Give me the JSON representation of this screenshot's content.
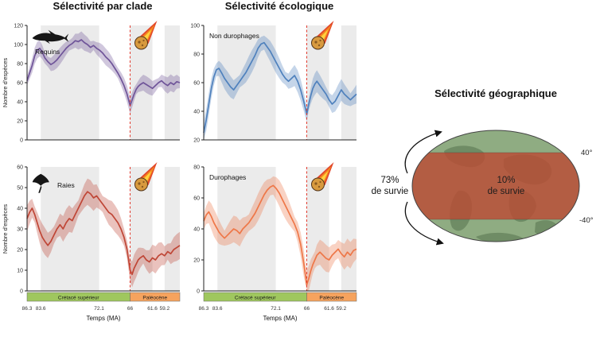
{
  "titles": {
    "clade": "Sélectivité par clade",
    "ecology": "Sélectivité écologique",
    "geography": "Sélectivité géographique"
  },
  "geography": {
    "left_value": "73%",
    "left_label": "de survie",
    "center_value": "10%",
    "center_label": "de survie",
    "lat_north": "40°",
    "lat_south": "-40°",
    "ocean_color": "#8fac82",
    "band_color": "#bb4a33"
  },
  "chart_data": {
    "type": "line",
    "x_label": "Temps (MA)",
    "y_label": "Nombre d'espèces",
    "xlim": [
      86.3,
      56.2
    ],
    "xticks": [
      86.3,
      83.6,
      72.1,
      66,
      61.6,
      59.2
    ],
    "extinction_event_ma": 66,
    "shaded_stages": [
      [
        83.6,
        72.1
      ],
      [
        66,
        61.6
      ],
      [
        59.2,
        56.2
      ]
    ],
    "era_bar": [
      {
        "label": "Crétacé supérieur",
        "from": 86.3,
        "to": 66,
        "color": "#9fc75e"
      },
      {
        "label": "Paléocène",
        "from": 66,
        "to": 56.2,
        "color": "#f6a35e"
      }
    ],
    "x": [
      86.3,
      85.8,
      85.3,
      84.8,
      84.3,
      83.8,
      83.3,
      82.8,
      82.2,
      81.6,
      81.0,
      80.4,
      79.8,
      79.2,
      78.6,
      78.0,
      77.4,
      76.8,
      76.2,
      75.6,
      75.0,
      74.4,
      73.8,
      73.2,
      72.6,
      72.0,
      71.4,
      70.8,
      70.2,
      69.6,
      69.0,
      68.4,
      67.8,
      67.2,
      66.6,
      66.0,
      65.6,
      65.2,
      64.8,
      64.4,
      64.0,
      63.4,
      62.8,
      62.2,
      61.6,
      61.0,
      60.4,
      59.8,
      59.2,
      58.6,
      58.0,
      57.4,
      56.8,
      56.2
    ],
    "charts": [
      {
        "key": "sharks",
        "panel": "clade",
        "label": "Requins",
        "icon": "shark-icon",
        "color": "#6f5499",
        "ylabel": "Nombre d'espèces",
        "ylim": [
          0,
          120
        ],
        "yticks": [
          0,
          20,
          40,
          60,
          80,
          100,
          120
        ],
        "band": 8,
        "values": [
          62,
          70,
          78,
          88,
          94,
          96,
          92,
          86,
          82,
          79,
          81,
          84,
          88,
          92,
          96,
          99,
          101,
          104,
          103,
          105,
          102,
          100,
          97,
          99,
          96,
          94,
          91,
          87,
          84,
          80,
          75,
          70,
          64,
          57,
          48,
          36,
          42,
          48,
          53,
          56,
          58,
          60,
          58,
          56,
          54,
          57,
          60,
          62,
          59,
          57,
          60,
          58,
          61,
          60
        ]
      },
      {
        "key": "non_durophages",
        "panel": "ecology",
        "label": "Non durophages",
        "icon": null,
        "color": "#4f81bd",
        "ylabel": "",
        "ylim": [
          20,
          100
        ],
        "yticks": [
          20,
          40,
          60,
          80,
          100
        ],
        "band": 7,
        "values": [
          25,
          34,
          45,
          56,
          64,
          69,
          70,
          67,
          63,
          60,
          57,
          55,
          58,
          61,
          64,
          67,
          71,
          75,
          79,
          84,
          87,
          88,
          85,
          82,
          78,
          74,
          70,
          66,
          63,
          61,
          63,
          65,
          61,
          55,
          47,
          38,
          45,
          51,
          56,
          59,
          61,
          58,
          55,
          52,
          48,
          45,
          47,
          51,
          55,
          52,
          50,
          48,
          50,
          52
        ]
      },
      {
        "key": "rays",
        "panel": "clade",
        "label": "Raies",
        "icon": "ray-icon",
        "color": "#bf4636",
        "ylabel": "Nombre d'espèces",
        "ylim": [
          0,
          60
        ],
        "yticks": [
          0,
          10,
          20,
          30,
          40,
          50,
          60
        ],
        "band": 6,
        "values": [
          35,
          38,
          40,
          37,
          33,
          29,
          26,
          24,
          22,
          24,
          27,
          30,
          32,
          30,
          33,
          35,
          34,
          37,
          40,
          43,
          46,
          48,
          47,
          45,
          46,
          44,
          42,
          40,
          38,
          37,
          35,
          33,
          30,
          26,
          20,
          10,
          8,
          11,
          13,
          15,
          16,
          17,
          15,
          14,
          16,
          15,
          17,
          18,
          17,
          19,
          18,
          20,
          21,
          22
        ]
      },
      {
        "key": "durophages",
        "panel": "ecology",
        "label": "Durophages",
        "icon": null,
        "color": "#ee7748",
        "ylabel": "",
        "ylim": [
          0,
          80
        ],
        "yticks": [
          0,
          20,
          40,
          60,
          80
        ],
        "band": 8,
        "values": [
          45,
          49,
          51,
          48,
          44,
          41,
          38,
          36,
          34,
          36,
          38,
          40,
          39,
          37,
          40,
          42,
          44,
          47,
          50,
          54,
          58,
          62,
          65,
          67,
          68,
          66,
          63,
          59,
          55,
          51,
          47,
          43,
          38,
          30,
          18,
          4,
          8,
          13,
          17,
          20,
          23,
          25,
          23,
          21,
          20,
          23,
          25,
          27,
          24,
          22,
          25,
          23,
          26,
          27
        ]
      }
    ]
  }
}
